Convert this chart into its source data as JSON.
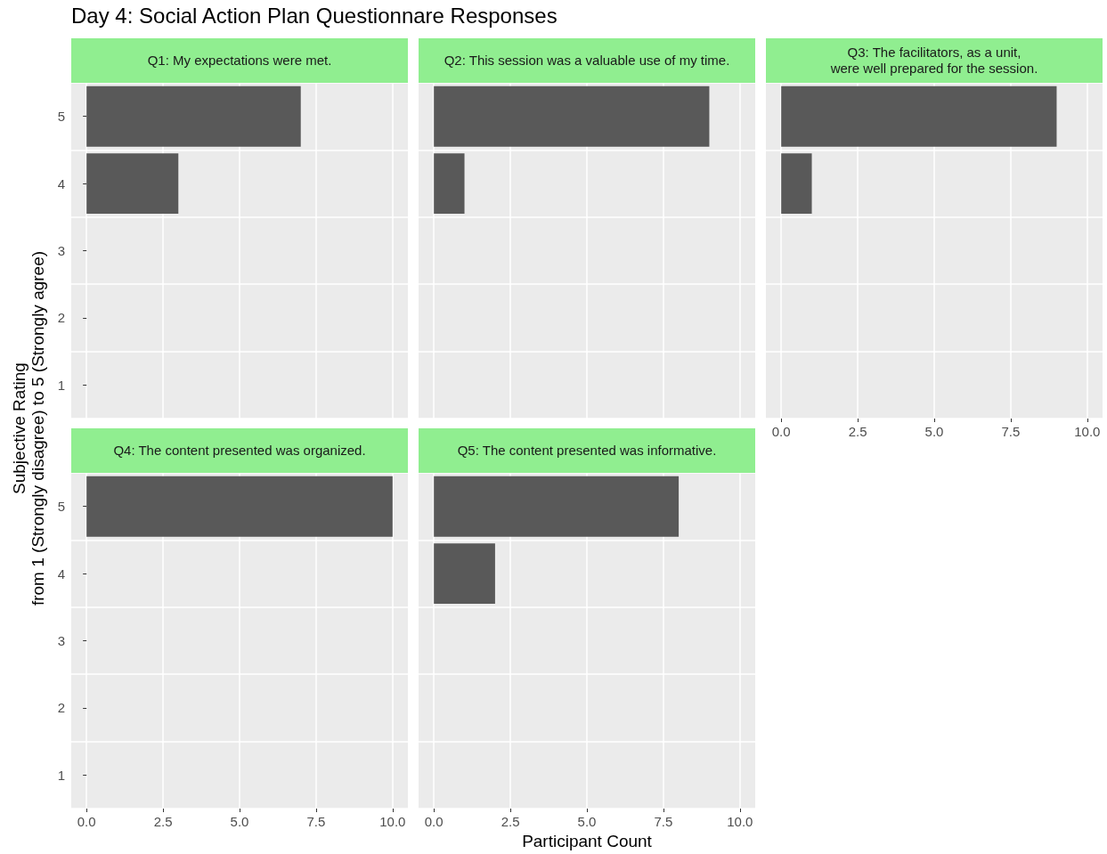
{
  "chart_data": [
    {
      "type": "bar",
      "orientation": "horizontal",
      "title": "Day 4: Social Action Plan Questionnare Responses",
      "subtitle": "Q1: My expectations were met.",
      "ylabel": "Subjective Rating\nfrom 1 (Strongly disagree) to 5 (Strongly agree)",
      "categories": [
        "5",
        "4",
        "3",
        "2",
        "1"
      ],
      "values": [
        7,
        3,
        null,
        null,
        null
      ],
      "color": "#595959",
      "xlim": [
        -0.5,
        10.5
      ],
      "xticks": [
        0,
        2.5,
        5,
        7.5,
        10
      ],
      "grid": true,
      "tick_labels": "y"
    },
    {
      "type": "bar",
      "orientation": "horizontal",
      "subtitle": "Q2: This session was a valuable use of my time.",
      "categories": [
        "5",
        "4",
        "3",
        "2",
        "1"
      ],
      "values": [
        9,
        1,
        null,
        null,
        null
      ],
      "color": "#595959",
      "xlim": [
        -0.5,
        10.5
      ],
      "xticks": [
        0,
        2.5,
        5,
        7.5,
        10
      ],
      "grid": true,
      "tick_labels": false
    },
    {
      "type": "bar",
      "orientation": "horizontal",
      "subtitle": "Q3: The facilitators, as a unit,\nwere well prepared for the session.",
      "categories": [
        "5",
        "4",
        "3",
        "2",
        "1"
      ],
      "values": [
        9,
        1,
        null,
        null,
        null
      ],
      "color": "#595959",
      "xlim": [
        -0.5,
        10.5
      ],
      "xticks": [
        {
          "value": 0,
          "label": "0.0"
        },
        {
          "value": 2.5,
          "label": "2.5"
        },
        {
          "value": 5,
          "label": "5.0"
        },
        {
          "value": 7.5,
          "label": "7.5"
        },
        {
          "value": 10,
          "label": "10.0"
        }
      ],
      "grid": true,
      "tick_labels": "x"
    },
    {
      "type": "bar",
      "orientation": "horizontal",
      "subtitle": "Q4: The content presented was organized.",
      "categories": [
        "5",
        "4",
        "3",
        "2",
        "1"
      ],
      "values": [
        10,
        null,
        null,
        null,
        null
      ],
      "color": "#595959",
      "xlim": [
        -0.5,
        10.5
      ],
      "xticks": [
        {
          "value": 0,
          "label": "0.0"
        },
        {
          "value": 2.5,
          "label": "2.5"
        },
        {
          "value": 5,
          "label": "5.0"
        },
        {
          "value": 7.5,
          "label": "7.5"
        },
        {
          "value": 10,
          "label": "10.0"
        }
      ],
      "grid": true
    },
    {
      "type": "bar",
      "orientation": "horizontal",
      "subtitle": "Q5: The content presented was informative.",
      "xlabel": "Participant Count",
      "categories": [
        "5",
        "4",
        "3",
        "2",
        "1"
      ],
      "values": [
        8,
        2,
        null,
        null,
        null
      ],
      "color": "#595959",
      "xlim": [
        -0.5,
        10.5
      ],
      "xticks": [
        {
          "value": 0,
          "label": "0.0"
        },
        {
          "value": 2.5,
          "label": "2.5"
        },
        {
          "value": 5,
          "label": "5.0"
        },
        {
          "value": 7.5,
          "label": "7.5"
        },
        {
          "value": 10,
          "label": "10.0"
        }
      ],
      "grid": true,
      "tick_labels": "x"
    }
  ]
}
